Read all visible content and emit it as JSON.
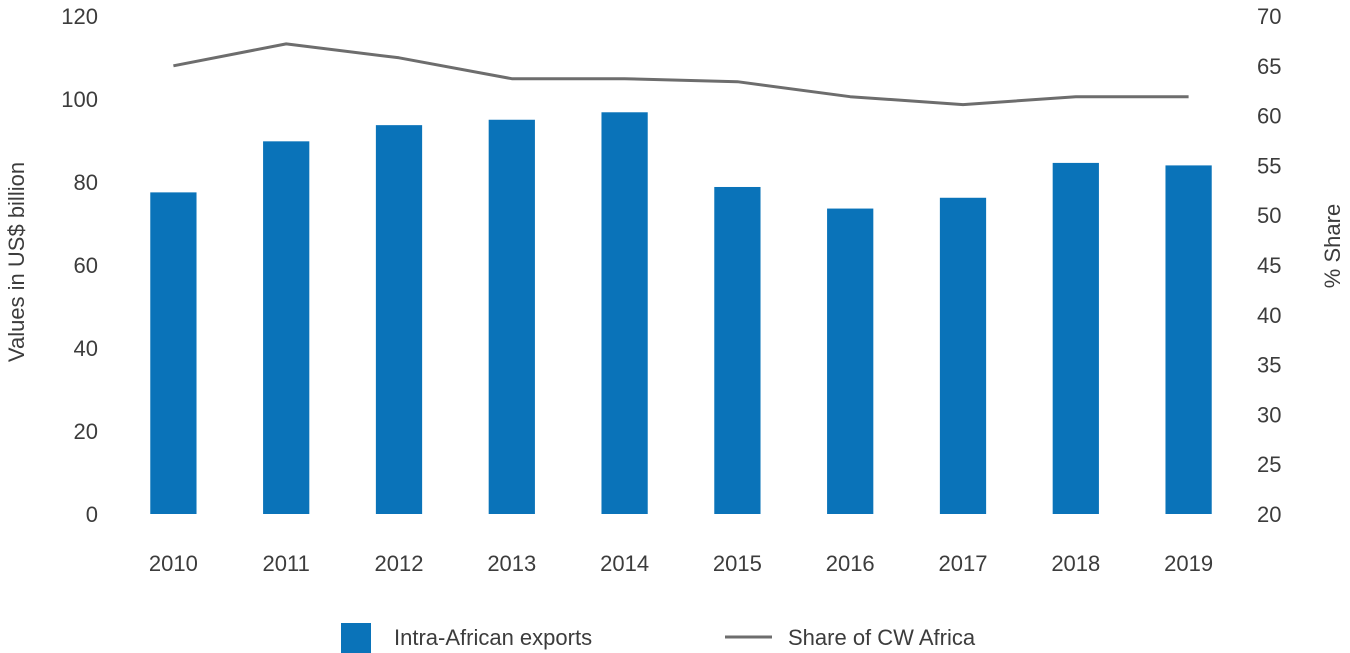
{
  "chart_data": {
    "type": "bar",
    "categories": [
      "2010",
      "2011",
      "2012",
      "2013",
      "2014",
      "2015",
      "2016",
      "2017",
      "2018",
      "2019"
    ],
    "series": [
      {
        "name": "Intra-African exports",
        "type": "bar",
        "axis": "left",
        "color": "#0a73b9",
        "values": [
          77.5,
          89.8,
          93.7,
          95,
          96.8,
          78.8,
          73.6,
          76.2,
          84.6,
          84
        ]
      },
      {
        "name": "Share of CW Africa",
        "type": "line",
        "axis": "right",
        "color": "#6d6d6d",
        "values": [
          65,
          67.2,
          65.8,
          63.7,
          63.7,
          63.4,
          61.9,
          61.1,
          61.9,
          61.9
        ]
      }
    ],
    "title": "",
    "xlabel": "",
    "ylabel": "Values in US$ billion",
    "y2label": "% Share",
    "ylim": [
      0,
      120
    ],
    "y2lim": [
      20,
      70
    ],
    "yticks": [
      "0",
      "20",
      "40",
      "60",
      "80",
      "100",
      "120"
    ],
    "y2ticks": [
      "20",
      "25",
      "30",
      "35",
      "40",
      "45",
      "50",
      "55",
      "60",
      "65",
      "70"
    ],
    "grid": false,
    "legend": "bottom"
  }
}
